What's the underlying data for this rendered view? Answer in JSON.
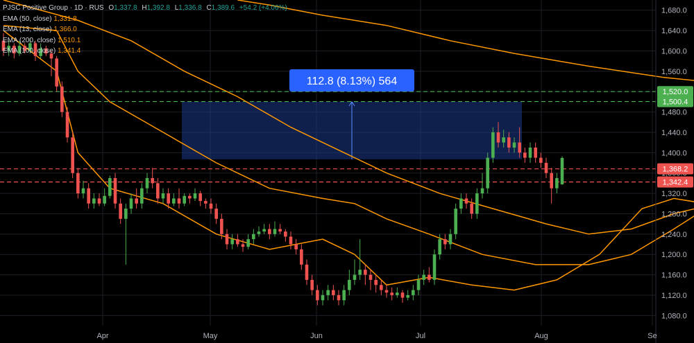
{
  "header": {
    "symbol": "PJSC Positive Group · 1D · RUS",
    "ohlc": {
      "o_label": "O",
      "o": "1,337.8",
      "h_label": "H",
      "h": "1,392.8",
      "l_label": "L",
      "l": "1,336.8",
      "c_label": "C",
      "c": "1,389.6",
      "change": "+54.2 (+4.06%)"
    },
    "indicators": [
      {
        "label": "EMA (50, close)",
        "value": "1,331.8",
        "color": "#ff9800"
      },
      {
        "label": "EMA (13, close)",
        "value": "1,366.0",
        "color": "#ff9800"
      },
      {
        "label": "EMA (200, close)",
        "value": "1,510.1",
        "color": "#ff9800"
      },
      {
        "label": "EMA (100, close)",
        "value": "1,341.4",
        "color": "#ff9800"
      }
    ]
  },
  "measure": {
    "label": "112.8 (8.13%) 564",
    "from_price": 1387,
    "to_price": 1500,
    "from_date_index": 80,
    "to_date_index": 140
  },
  "colors": {
    "up": "#26a69a",
    "up_bright": "#4caf50",
    "down": "#ef5350",
    "ema": "#ff9800",
    "green_dash": "#4caf50",
    "red_dash": "#ef5350",
    "measure_fill": "#1e3a8a",
    "measure_label": "#2962ff",
    "grid": "#1c1f26",
    "axis_text": "#b2b5be"
  },
  "chart_data": {
    "type": "candlestick",
    "y_axis": {
      "ticks": [
        "1,680.0",
        "1,640.0",
        "1,600.0",
        "1,560.0",
        "1,520.0",
        "1,480.0",
        "1,440.0",
        "1,400.0",
        "1,360.0",
        "1,320.0",
        "1,280.0",
        "1,240.0",
        "1,200.0",
        "1,160.0",
        "1,120.0",
        "1,080.0"
      ],
      "tick_values": [
        1680,
        1640,
        1600,
        1560,
        1520,
        1480,
        1440,
        1400,
        1360,
        1320,
        1280,
        1240,
        1200,
        1160,
        1120,
        1080
      ],
      "range": [
        1060,
        1700
      ]
    },
    "x_axis": {
      "labels": [
        "Apr",
        "May",
        "Jun",
        "Jul",
        "Aug",
        "Se"
      ],
      "label_dates": [
        "2024-04-01",
        "2024-05-01",
        "2024-06-01",
        "2024-07-01",
        "2024-08-01",
        "2024-09-01"
      ]
    },
    "horizontal_lines": [
      {
        "price": 1520.0,
        "label": "1,520.0",
        "style": "dashed",
        "color": "green"
      },
      {
        "price": 1500.4,
        "label": "1,500.4",
        "style": "dashed",
        "color": "green"
      },
      {
        "price": 1368.2,
        "label": "1,368.2",
        "style": "dashed",
        "color": "red"
      },
      {
        "price": 1342.4,
        "label": "1,342.4",
        "style": "dashed",
        "color": "red"
      }
    ],
    "ema_lines": [
      {
        "name": "EMA (13, close)",
        "points": [
          [
            0,
            1640
          ],
          [
            10,
            1560
          ],
          [
            14,
            1400
          ],
          [
            20,
            1330
          ],
          [
            30,
            1300
          ],
          [
            40,
            1240
          ],
          [
            50,
            1210
          ],
          [
            60,
            1230
          ],
          [
            66,
            1200
          ],
          [
            72,
            1140
          ],
          [
            80,
            1155
          ],
          [
            88,
            1140
          ],
          [
            96,
            1130
          ],
          [
            104,
            1150
          ],
          [
            112,
            1200
          ],
          [
            120,
            1290
          ],
          [
            126,
            1310
          ],
          [
            132,
            1300
          ],
          [
            136,
            1345
          ],
          [
            142,
            1380
          ],
          [
            150,
            1395
          ],
          [
            158,
            1395
          ],
          [
            164,
            1370
          ],
          [
            168,
            1350
          ]
        ]
      },
      {
        "name": "EMA (50, close)",
        "points": [
          [
            0,
            1650
          ],
          [
            10,
            1640
          ],
          [
            14,
            1560
          ],
          [
            20,
            1500
          ],
          [
            30,
            1440
          ],
          [
            40,
            1380
          ],
          [
            50,
            1330
          ],
          [
            60,
            1310
          ],
          [
            66,
            1300
          ],
          [
            72,
            1270
          ],
          [
            80,
            1240
          ],
          [
            90,
            1200
          ],
          [
            100,
            1180
          ],
          [
            110,
            1180
          ],
          [
            118,
            1200
          ],
          [
            126,
            1250
          ],
          [
            132,
            1290
          ],
          [
            140,
            1320
          ],
          [
            150,
            1335
          ],
          [
            160,
            1340
          ],
          [
            168,
            1340
          ]
        ]
      },
      {
        "name": "EMA (100, close)",
        "points": [
          [
            0,
            1700
          ],
          [
            14,
            1660
          ],
          [
            24,
            1620
          ],
          [
            34,
            1560
          ],
          [
            44,
            1510
          ],
          [
            54,
            1450
          ],
          [
            64,
            1400
          ],
          [
            72,
            1360
          ],
          [
            82,
            1320
          ],
          [
            92,
            1290
          ],
          [
            102,
            1260
          ],
          [
            110,
            1240
          ],
          [
            118,
            1250
          ],
          [
            126,
            1280
          ],
          [
            134,
            1300
          ],
          [
            144,
            1320
          ],
          [
            154,
            1330
          ],
          [
            162,
            1335
          ],
          [
            168,
            1340
          ]
        ]
      },
      {
        "name": "EMA (200, close)",
        "points": [
          [
            44,
            1700
          ],
          [
            50,
            1690
          ],
          [
            60,
            1670
          ],
          [
            72,
            1650
          ],
          [
            84,
            1620
          ],
          [
            96,
            1595
          ],
          [
            110,
            1570
          ],
          [
            124,
            1548
          ],
          [
            138,
            1533
          ],
          [
            150,
            1525
          ],
          [
            160,
            1516
          ],
          [
            168,
            1510
          ]
        ]
      }
    ],
    "candles_note": "Approximate daily OHLC series",
    "candles": [
      [
        1620,
        1600,
        1635,
        1590
      ],
      [
        1600,
        1610,
        1620,
        1590
      ],
      [
        1610,
        1595,
        1615,
        1585
      ],
      [
        1595,
        1610,
        1620,
        1590
      ],
      [
        1610,
        1600,
        1615,
        1595
      ],
      [
        1600,
        1615,
        1625,
        1595
      ],
      [
        1615,
        1590,
        1620,
        1580
      ],
      [
        1590,
        1605,
        1615,
        1585
      ],
      [
        1605,
        1595,
        1610,
        1590
      ],
      [
        1595,
        1585,
        1600,
        1550
      ],
      [
        1585,
        1530,
        1590,
        1520
      ],
      [
        1530,
        1480,
        1540,
        1470
      ],
      [
        1480,
        1430,
        1490,
        1420
      ],
      [
        1430,
        1360,
        1440,
        1350
      ],
      [
        1360,
        1320,
        1370,
        1310
      ],
      [
        1320,
        1330,
        1345,
        1310
      ],
      [
        1330,
        1300,
        1340,
        1290
      ],
      [
        1300,
        1310,
        1320,
        1290
      ],
      [
        1310,
        1300,
        1320,
        1295
      ],
      [
        1300,
        1315,
        1330,
        1295
      ],
      [
        1315,
        1350,
        1355,
        1310
      ],
      [
        1350,
        1300,
        1360,
        1290
      ],
      [
        1300,
        1270,
        1310,
        1260
      ],
      [
        1270,
        1290,
        1300,
        1180
      ],
      [
        1290,
        1310,
        1320,
        1280
      ],
      [
        1310,
        1300,
        1330,
        1290
      ],
      [
        1300,
        1330,
        1340,
        1290
      ],
      [
        1330,
        1350,
        1360,
        1320
      ],
      [
        1350,
        1340,
        1370,
        1330
      ],
      [
        1340,
        1310,
        1350,
        1300
      ],
      [
        1310,
        1320,
        1330,
        1300
      ],
      [
        1320,
        1300,
        1330,
        1290
      ],
      [
        1300,
        1310,
        1320,
        1295
      ],
      [
        1310,
        1300,
        1330,
        1290
      ],
      [
        1300,
        1315,
        1320,
        1295
      ],
      [
        1315,
        1310,
        1320,
        1300
      ],
      [
        1310,
        1320,
        1330,
        1305
      ],
      [
        1320,
        1305,
        1325,
        1295
      ],
      [
        1305,
        1300,
        1310,
        1290
      ],
      [
        1300,
        1290,
        1310,
        1280
      ],
      [
        1290,
        1270,
        1300,
        1260
      ],
      [
        1270,
        1240,
        1280,
        1230
      ],
      [
        1240,
        1220,
        1250,
        1210
      ],
      [
        1220,
        1230,
        1240,
        1210
      ],
      [
        1230,
        1220,
        1240,
        1215
      ],
      [
        1220,
        1215,
        1230,
        1205
      ],
      [
        1215,
        1230,
        1240,
        1210
      ],
      [
        1230,
        1240,
        1250,
        1220
      ],
      [
        1240,
        1245,
        1255,
        1235
      ],
      [
        1245,
        1250,
        1260,
        1240
      ],
      [
        1250,
        1240,
        1260,
        1230
      ],
      [
        1240,
        1250,
        1265,
        1235
      ],
      [
        1250,
        1245,
        1260,
        1240
      ],
      [
        1245,
        1235,
        1250,
        1225
      ],
      [
        1235,
        1220,
        1245,
        1210
      ],
      [
        1220,
        1210,
        1230,
        1200
      ],
      [
        1210,
        1180,
        1220,
        1170
      ],
      [
        1180,
        1150,
        1190,
        1140
      ],
      [
        1150,
        1130,
        1160,
        1120
      ],
      [
        1130,
        1110,
        1140,
        1100
      ],
      [
        1110,
        1120,
        1130,
        1100
      ],
      [
        1120,
        1130,
        1140,
        1110
      ],
      [
        1130,
        1120,
        1140,
        1110
      ],
      [
        1120,
        1110,
        1130,
        1100
      ],
      [
        1110,
        1130,
        1140,
        1100
      ],
      [
        1130,
        1150,
        1170,
        1120
      ],
      [
        1150,
        1160,
        1190,
        1140
      ],
      [
        1160,
        1170,
        1230,
        1150
      ],
      [
        1170,
        1160,
        1180,
        1140
      ],
      [
        1160,
        1150,
        1170,
        1130
      ],
      [
        1150,
        1140,
        1160,
        1125
      ],
      [
        1140,
        1130,
        1150,
        1120
      ],
      [
        1130,
        1125,
        1140,
        1115
      ],
      [
        1125,
        1120,
        1135,
        1110
      ],
      [
        1120,
        1125,
        1135,
        1115
      ],
      [
        1125,
        1115,
        1130,
        1105
      ],
      [
        1115,
        1120,
        1130,
        1110
      ],
      [
        1120,
        1130,
        1140,
        1110
      ],
      [
        1130,
        1150,
        1160,
        1120
      ],
      [
        1150,
        1160,
        1170,
        1140
      ],
      [
        1160,
        1150,
        1175,
        1145
      ],
      [
        1150,
        1200,
        1210,
        1140
      ],
      [
        1200,
        1230,
        1240,
        1190
      ],
      [
        1230,
        1220,
        1240,
        1210
      ],
      [
        1220,
        1240,
        1250,
        1210
      ],
      [
        1240,
        1290,
        1300,
        1230
      ],
      [
        1290,
        1310,
        1320,
        1280
      ],
      [
        1310,
        1300,
        1320,
        1290
      ],
      [
        1300,
        1280,
        1310,
        1270
      ],
      [
        1280,
        1320,
        1330,
        1270
      ],
      [
        1320,
        1330,
        1360,
        1310
      ],
      [
        1330,
        1390,
        1400,
        1320
      ],
      [
        1390,
        1440,
        1450,
        1380
      ],
      [
        1440,
        1420,
        1460,
        1410
      ],
      [
        1420,
        1430,
        1445,
        1410
      ],
      [
        1430,
        1410,
        1440,
        1400
      ],
      [
        1410,
        1420,
        1430,
        1400
      ],
      [
        1420,
        1400,
        1450,
        1390
      ],
      [
        1400,
        1390,
        1410,
        1380
      ],
      [
        1390,
        1410,
        1420,
        1380
      ],
      [
        1410,
        1390,
        1420,
        1380
      ],
      [
        1390,
        1380,
        1400,
        1370
      ],
      [
        1380,
        1360,
        1390,
        1350
      ],
      [
        1360,
        1330,
        1370,
        1300
      ],
      [
        1330,
        1350,
        1360,
        1320
      ],
      [
        1337.8,
        1389.6,
        1392.8,
        1336.8
      ]
    ]
  }
}
